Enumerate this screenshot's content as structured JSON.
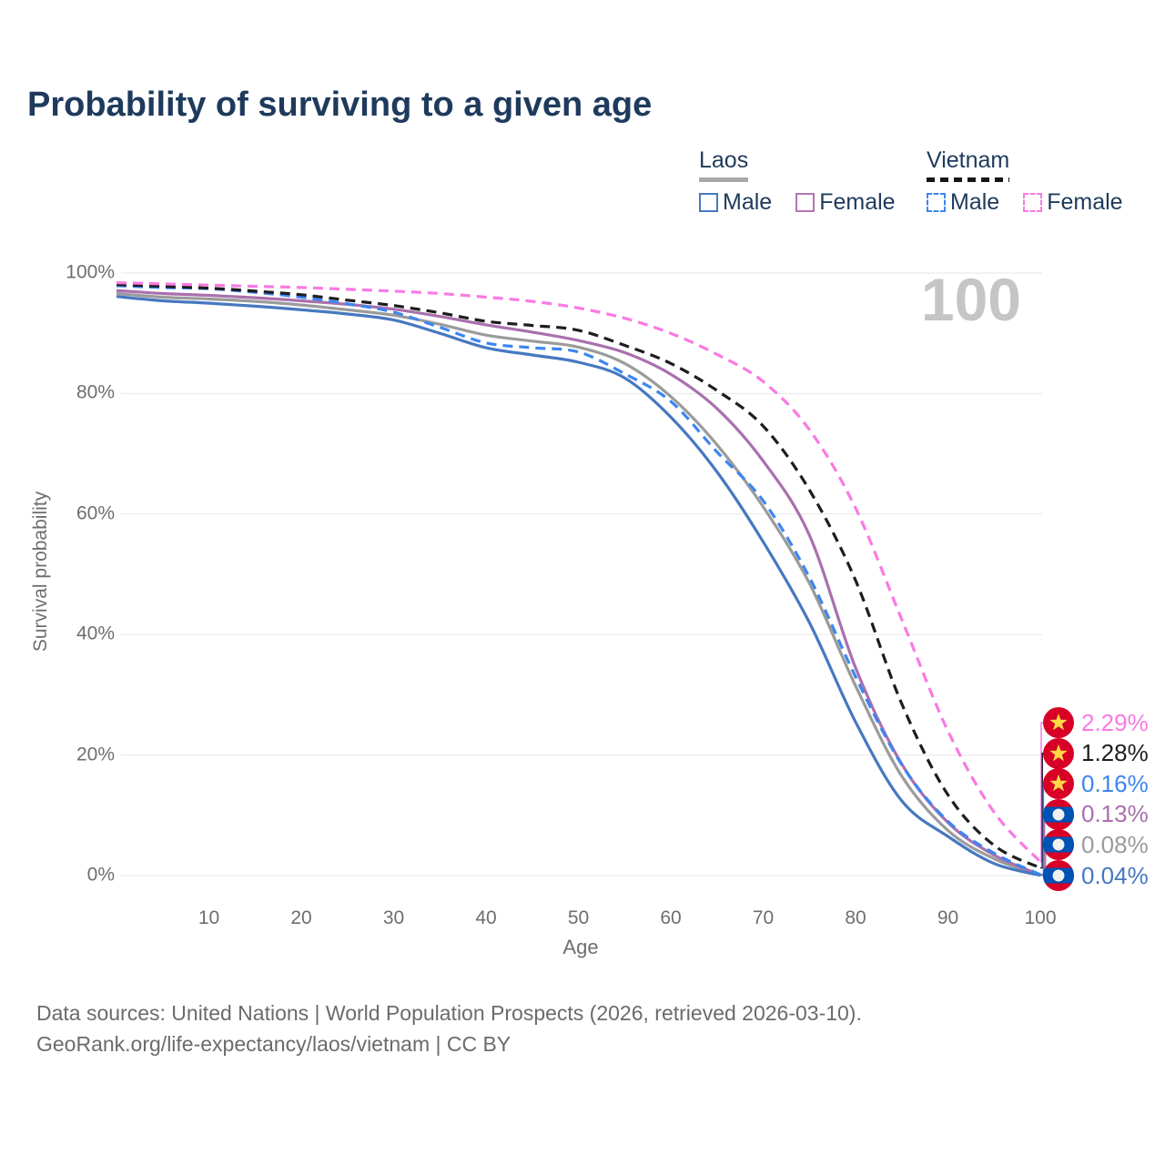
{
  "chart_data": {
    "type": "line",
    "title": "Probability of surviving to a given age",
    "xlabel": "Age",
    "ylabel": "Survival probability",
    "xlim": [
      0,
      100
    ],
    "ylim": [
      0,
      100
    ],
    "grid": "horizontal-only",
    "legend_position": "top-right",
    "age_indicator": "100",
    "x": [
      0,
      5,
      10,
      15,
      20,
      25,
      30,
      35,
      40,
      45,
      50,
      55,
      60,
      65,
      70,
      75,
      80,
      85,
      90,
      95,
      100
    ],
    "xticks": [
      {
        "label": "10",
        "value": 10
      },
      {
        "label": "20",
        "value": 20
      },
      {
        "label": "30",
        "value": 30
      },
      {
        "label": "40",
        "value": 40
      },
      {
        "label": "50",
        "value": 50
      },
      {
        "label": "60",
        "value": 60
      },
      {
        "label": "70",
        "value": 70
      },
      {
        "label": "80",
        "value": 80
      },
      {
        "label": "90",
        "value": 90
      },
      {
        "label": "100",
        "value": 100
      }
    ],
    "yticks": [
      {
        "label": "0%",
        "value": 0
      },
      {
        "label": "20%",
        "value": 20
      },
      {
        "label": "40%",
        "value": 40
      },
      {
        "label": "60%",
        "value": 60
      },
      {
        "label": "80%",
        "value": 80
      },
      {
        "label": "100%",
        "value": 100
      }
    ],
    "series": [
      {
        "id": "laos_both",
        "name": "Laos",
        "sex": "Both",
        "color": "#9b9b9b",
        "dash": false,
        "values": [
          96.6,
          96.0,
          95.7,
          95.3,
          94.7,
          93.9,
          93.0,
          91.5,
          89.7,
          88.7,
          87.7,
          85.0,
          79.5,
          71.5,
          61.2,
          48.5,
          31.5,
          16.5,
          7.5,
          2.8,
          0.08
        ],
        "end_label": "0.08%"
      },
      {
        "id": "laos_female",
        "name": "Laos Female",
        "sex": "Female",
        "color": "#a970ae",
        "dash": false,
        "values": [
          97.1,
          96.6,
          96.3,
          95.9,
          95.4,
          94.8,
          94.0,
          92.8,
          91.4,
          90.2,
          88.8,
          86.8,
          83.2,
          77.5,
          68.8,
          56.5,
          34.5,
          18.5,
          8.8,
          3.4,
          0.13
        ],
        "end_label": "0.13%"
      },
      {
        "id": "laos_male",
        "name": "Laos Male",
        "sex": "Male",
        "color": "#4678c0",
        "dash": false,
        "values": [
          96.1,
          95.4,
          95.0,
          94.5,
          93.9,
          93.2,
          92.2,
          90.0,
          87.6,
          86.4,
          85.2,
          82.6,
          76.1,
          67.0,
          55.4,
          42.0,
          25.5,
          12.4,
          6.5,
          2.0,
          0.04
        ],
        "end_label": "0.04%"
      },
      {
        "id": "vn_male",
        "name": "Vietnam Male",
        "sex": "Male",
        "color": "#3d86f0",
        "dash": true,
        "values": [
          97.9,
          97.6,
          97.4,
          96.8,
          96.0,
          94.9,
          93.5,
          91.0,
          88.4,
          87.6,
          86.9,
          83.3,
          78.7,
          70.3,
          62.2,
          49.5,
          33.0,
          18.4,
          9.0,
          3.7,
          0.16
        ],
        "end_label": "0.16%"
      },
      {
        "id": "vn_both",
        "name": "Vietnam",
        "sex": "Both",
        "color": "#1d1d1d",
        "dash": true,
        "values": [
          98.1,
          97.8,
          97.5,
          97.0,
          96.4,
          95.5,
          94.6,
          93.4,
          92.0,
          91.3,
          90.5,
          88.0,
          85.0,
          80.5,
          74.6,
          64.0,
          49.0,
          28.5,
          13.4,
          5.0,
          1.28
        ],
        "end_label": "1.28%"
      },
      {
        "id": "vn_female",
        "name": "Vietnam Female",
        "sex": "Female",
        "color": "#f97ae3",
        "dash": true,
        "values": [
          98.4,
          98.2,
          98.0,
          97.8,
          97.6,
          97.3,
          97.0,
          96.6,
          96.0,
          95.3,
          94.2,
          92.5,
          90.0,
          86.5,
          82.0,
          74.0,
          61.0,
          42.5,
          24.0,
          10.5,
          2.29
        ],
        "end_label": "2.29%"
      }
    ],
    "end_labels": [
      {
        "series": "vn_female",
        "text": "2.29%",
        "flag": "vietnam"
      },
      {
        "series": "vn_both",
        "text": "1.28%",
        "flag": "vietnam"
      },
      {
        "series": "vn_male",
        "text": "0.16%",
        "flag": "vietnam"
      },
      {
        "series": "laos_female",
        "text": "0.13%",
        "flag": "laos"
      },
      {
        "series": "laos_both",
        "text": "0.08%",
        "flag": "laos"
      },
      {
        "series": "laos_male",
        "text": "0.04%",
        "flag": "laos"
      }
    ]
  },
  "legend": {
    "groups": [
      {
        "country": "Laos",
        "style": "solid",
        "items": [
          {
            "label": "Male",
            "series": "laos_male",
            "color": "#4678c0"
          },
          {
            "label": "Female",
            "series": "laos_female",
            "color": "#b476b4"
          }
        ]
      },
      {
        "country": "Vietnam",
        "style": "dashed",
        "items": [
          {
            "label": "Male",
            "series": "vn_male",
            "color": "#3d86f0"
          },
          {
            "label": "Female",
            "series": "vn_female",
            "color": "#f97ae3"
          }
        ]
      }
    ]
  },
  "flags": {
    "vietnam": {
      "red": "#d80027",
      "star": "#ffda44"
    },
    "laos": {
      "red": "#d80027",
      "blue": "#0052b4",
      "circle": "#f0f0f0"
    }
  },
  "theme": {
    "title_color": "#1e3a5c",
    "axis_text": "#6e6e6e",
    "gridline": "#e7e7e7",
    "watermark": "#c5c5c5",
    "footer": "#6b6b6b"
  },
  "footer": {
    "line1": "Data sources: United Nations | World Population Prospects (2026, retrieved 2026-03-10).",
    "line2": "GeoRank.org/life-expectancy/laos/vietnam | CC BY"
  }
}
